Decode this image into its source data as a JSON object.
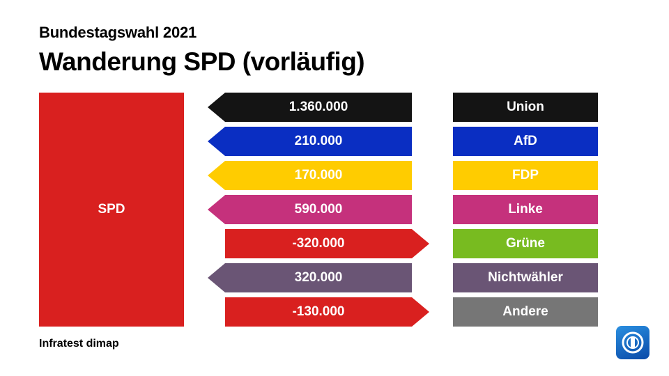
{
  "header": {
    "supertitle": "Bundestagswahl 2021",
    "title": "Wanderung SPD (vorläufig)"
  },
  "source": "Infratest dimap",
  "logo_icon": "ard-logo-icon",
  "chart_data": {
    "type": "bar",
    "title": "Wanderung SPD (vorläufig)",
    "subtitle": "Bundestagswahl 2021",
    "party": {
      "label": "SPD",
      "color": "#d9201f"
    },
    "categories": [
      "Union",
      "AfD",
      "FDP",
      "Linke",
      "Grüne",
      "Nichtwähler",
      "Andere"
    ],
    "values": [
      1360000,
      210000,
      170000,
      590000,
      -320000,
      320000,
      -130000
    ],
    "value_labels": [
      "1.360.000",
      "210.000",
      "170.000",
      "590.000",
      "-320.000",
      "320.000",
      "-130.000"
    ],
    "colors": [
      "#141414",
      "#0a2ec2",
      "#ffcc00",
      "#c5317c",
      "#78bb20",
      "#6a5575",
      "#767676"
    ],
    "negative_color": "#d9201f",
    "legend": "none"
  }
}
